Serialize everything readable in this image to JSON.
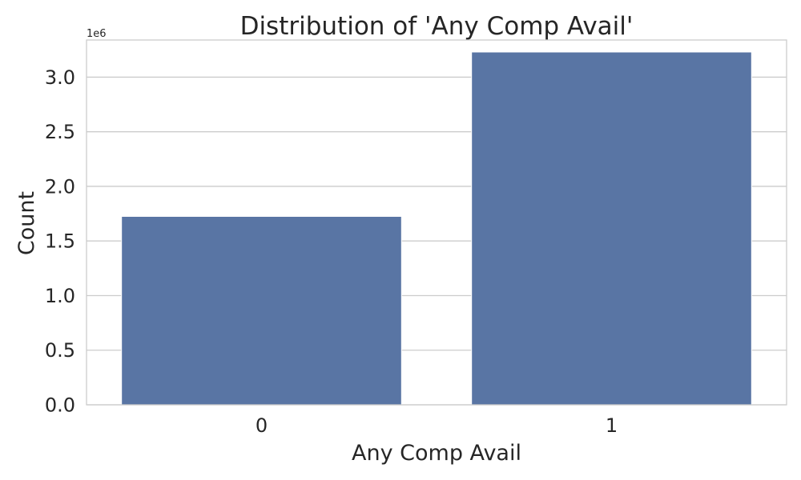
{
  "chart_data": {
    "type": "bar",
    "title": "Distribution of 'Any Comp Avail'",
    "xlabel": "Any Comp Avail",
    "ylabel": "Count",
    "categories": [
      "0",
      "1"
    ],
    "values": [
      1725000,
      3230000
    ],
    "ylim": [
      0,
      3340000
    ],
    "yticks": [
      0,
      500000,
      1000000,
      1500000,
      2000000,
      2500000,
      3000000
    ],
    "ytick_labels": [
      "0.0",
      "0.5",
      "1.0",
      "1.5",
      "2.0",
      "2.5",
      "3.0"
    ],
    "y_offset_label": "1e6",
    "grid": true,
    "bar_color": "#5975a4",
    "grid_color": "#cccccc",
    "spine_color": "#cccccc",
    "text_color": "#262626"
  }
}
